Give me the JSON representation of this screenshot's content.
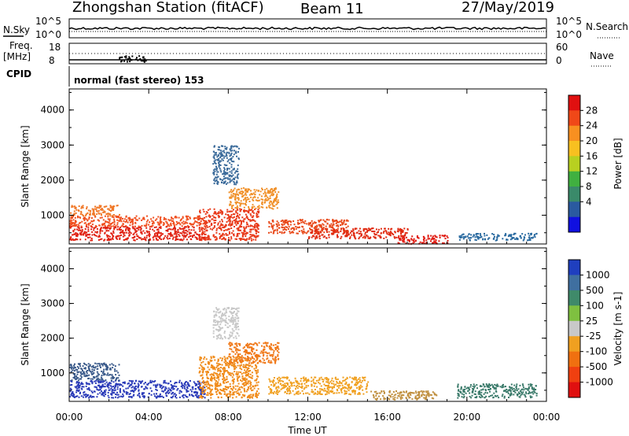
{
  "header": {
    "station": "Zhongshan Station (fitACF)",
    "beam": "Beam 11",
    "date": "27/May/2019"
  },
  "panels": {
    "nsky_label": "N.Sky",
    "nsearch_label": "N.Search",
    "freq_label_1": "Freq.",
    "freq_label_2": "[MHz]",
    "nave_label": "Nave",
    "cpid_label": "CPID",
    "cpid_text": "normal (fast stereo) 153",
    "nsky_ticks": [
      "10^5",
      "10^0"
    ],
    "nsearch_ticks": [
      "10^5",
      "10^0"
    ],
    "freq_ticks": [
      "18",
      "8"
    ],
    "nave_ticks": [
      "60",
      "0"
    ]
  },
  "chart_data": [
    {
      "type": "heatmap",
      "name": "power",
      "xlabel": "Time UT",
      "ylabel": "Slant Range [km]",
      "xlim": [
        0,
        24
      ],
      "ylim": [
        180,
        4600
      ],
      "xticks": [
        "00:00",
        "04:00",
        "08:00",
        "12:00",
        "16:00",
        "20:00",
        "00:00"
      ],
      "xtick_values": [
        0,
        4,
        8,
        12,
        16,
        20,
        24
      ],
      "yticks": [
        "1000",
        "2000",
        "3000",
        "4000"
      ],
      "ytick_values": [
        1000,
        2000,
        3000,
        4000
      ],
      "colorbar_label": "Power [dB]",
      "colorbar_ticks": [
        "28",
        "24",
        "20",
        "16",
        "12",
        "8",
        "4"
      ],
      "colorbar_colors": [
        "#e01010",
        "#f04818",
        "#f89020",
        "#f8c020",
        "#b8d020",
        "#40b040",
        "#3a8a6a",
        "#2a5aa0",
        "#1010e0"
      ],
      "regions": [
        {
          "t0": 0.0,
          "t1": 6.8,
          "r0": 300,
          "r1": 700,
          "color": "#e02010"
        },
        {
          "t0": 0.0,
          "t1": 6.8,
          "r0": 700,
          "r1": 1000,
          "color": "#f05020"
        },
        {
          "t0": 0.0,
          "t1": 2.5,
          "r0": 1000,
          "r1": 1300,
          "color": "#f07828"
        },
        {
          "t0": 6.5,
          "t1": 9.5,
          "r0": 300,
          "r1": 1200,
          "color": "#e83818"
        },
        {
          "t0": 8.0,
          "t1": 10.5,
          "r0": 1200,
          "r1": 1800,
          "color": "#f09028"
        },
        {
          "t0": 10.0,
          "t1": 14.0,
          "r0": 500,
          "r1": 900,
          "color": "#e84818"
        },
        {
          "t0": 7.2,
          "t1": 8.5,
          "r0": 1900,
          "r1": 3000,
          "color": "#3a6a9a"
        },
        {
          "t0": 12.0,
          "t1": 17.0,
          "r0": 350,
          "r1": 650,
          "color": "#e02a10"
        },
        {
          "t0": 16.5,
          "t1": 19.0,
          "r0": 200,
          "r1": 450,
          "color": "#e01a10"
        },
        {
          "t0": 19.5,
          "t1": 23.5,
          "r0": 300,
          "r1": 500,
          "color": "#2a6aa0"
        }
      ]
    },
    {
      "type": "heatmap",
      "name": "velocity",
      "xlabel": "Time UT",
      "ylabel": "Slant Range [km]",
      "xlim": [
        0,
        24
      ],
      "ylim": [
        180,
        4600
      ],
      "xticks": [
        "00:00",
        "04:00",
        "08:00",
        "12:00",
        "16:00",
        "20:00",
        "00:00"
      ],
      "xtick_values": [
        0,
        4,
        8,
        12,
        16,
        20,
        24
      ],
      "yticks": [
        "1000",
        "2000",
        "3000",
        "4000"
      ],
      "ytick_values": [
        1000,
        2000,
        3000,
        4000
      ],
      "colorbar_label": "Velocity [m s-1]",
      "colorbar_ticks": [
        "1000",
        "500",
        "100",
        "25",
        "-25",
        "-100",
        "-500",
        "-1000"
      ],
      "colorbar_colors": [
        "#1f3fbf",
        "#3f6fa0",
        "#3f8a6a",
        "#7fc040",
        "#c8c8c8",
        "#f0a020",
        "#f07010",
        "#f04010",
        "#e01010"
      ],
      "regions": [
        {
          "t0": 0.0,
          "t1": 6.8,
          "r0": 300,
          "r1": 800,
          "color": "#2a3ab8"
        },
        {
          "t0": 0.0,
          "t1": 2.5,
          "r0": 800,
          "r1": 1300,
          "color": "#3a5a8a"
        },
        {
          "t0": 6.5,
          "t1": 9.5,
          "r0": 300,
          "r1": 1500,
          "color": "#f08a18"
        },
        {
          "t0": 8.0,
          "t1": 10.5,
          "r0": 1300,
          "r1": 1900,
          "color": "#f07818"
        },
        {
          "t0": 7.2,
          "t1": 8.5,
          "r0": 2000,
          "r1": 2900,
          "color": "#c8c8c8"
        },
        {
          "t0": 10.0,
          "t1": 15.0,
          "r0": 400,
          "r1": 900,
          "color": "#f0a020"
        },
        {
          "t0": 15.0,
          "t1": 18.5,
          "r0": 250,
          "r1": 500,
          "color": "#c09040"
        },
        {
          "t0": 19.5,
          "t1": 23.5,
          "r0": 300,
          "r1": 700,
          "color": "#3a7a6a"
        }
      ]
    }
  ]
}
